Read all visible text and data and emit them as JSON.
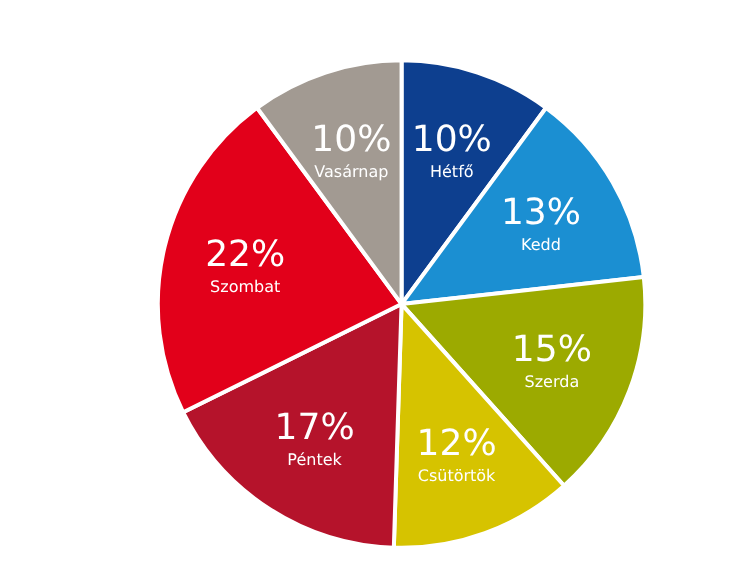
{
  "chart_data": {
    "type": "pie",
    "categories": [
      "Hétfő",
      "Kedd",
      "Szerda",
      "Csütörtök",
      "Péntek",
      "Szombat",
      "Vasárnap"
    ],
    "values": [
      10,
      13,
      15,
      12,
      17,
      22,
      10
    ],
    "colors": [
      "#0d3f8f",
      "#1b8fd2",
      "#9caa00",
      "#d6c300",
      "#b5132b",
      "#e2001a",
      "#a29a92"
    ],
    "value_labels": [
      "10%",
      "13%",
      "15%",
      "12%",
      "17%",
      "22%",
      "10%"
    ],
    "legend": false
  }
}
